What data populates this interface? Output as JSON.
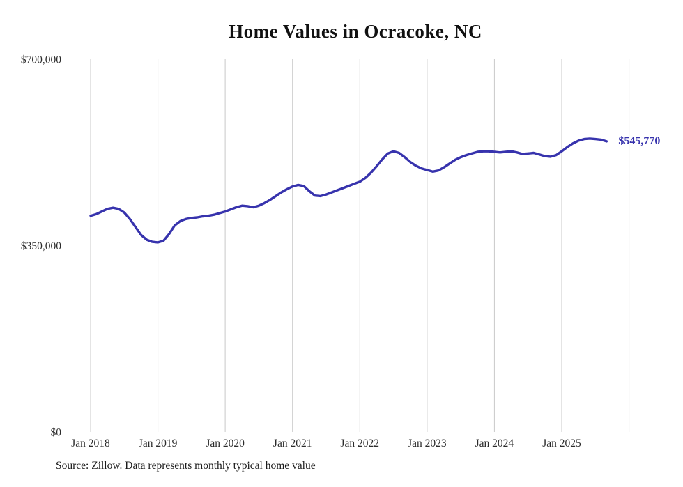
{
  "chart": {
    "title": "Home Values in Ocracoke, NC",
    "end_label": "$545,770",
    "source_note": "Source: Zillow. Data represents monthly typical home value",
    "line_color": "#3733ad",
    "grid_color": "#c9c9c9",
    "tick_text_color": "#2b2b2b",
    "title_color": "#111111"
  },
  "chart_data": {
    "type": "line",
    "title": "Home Values in Ocracoke, NC",
    "series_name": "Typical home value (monthly)",
    "x": [
      "2018-01",
      "2018-02",
      "2018-03",
      "2018-04",
      "2018-05",
      "2018-06",
      "2018-07",
      "2018-08",
      "2018-09",
      "2018-10",
      "2018-11",
      "2018-12",
      "2019-01",
      "2019-02",
      "2019-03",
      "2019-04",
      "2019-05",
      "2019-06",
      "2019-07",
      "2019-08",
      "2019-09",
      "2019-10",
      "2019-11",
      "2019-12",
      "2020-01",
      "2020-02",
      "2020-03",
      "2020-04",
      "2020-05",
      "2020-06",
      "2020-07",
      "2020-08",
      "2020-09",
      "2020-10",
      "2020-11",
      "2020-12",
      "2021-01",
      "2021-02",
      "2021-03",
      "2021-04",
      "2021-05",
      "2021-06",
      "2021-07",
      "2021-08",
      "2021-09",
      "2021-10",
      "2021-11",
      "2021-12",
      "2022-01",
      "2022-02",
      "2022-03",
      "2022-04",
      "2022-05",
      "2022-06",
      "2022-07",
      "2022-08",
      "2022-09",
      "2022-10",
      "2022-11",
      "2022-12",
      "2023-01",
      "2023-02",
      "2023-03",
      "2023-04",
      "2023-05",
      "2023-06",
      "2023-07",
      "2023-08",
      "2023-09",
      "2023-10",
      "2023-11",
      "2023-12",
      "2024-01",
      "2024-02",
      "2024-03",
      "2024-04",
      "2024-05",
      "2024-06",
      "2024-07",
      "2024-08",
      "2024-09",
      "2024-10",
      "2024-11",
      "2024-12",
      "2025-01",
      "2025-02",
      "2025-03",
      "2025-04",
      "2025-05",
      "2025-06",
      "2025-07",
      "2025-08",
      "2025-09"
    ],
    "values": [
      406000,
      409000,
      414000,
      419000,
      421000,
      419000,
      412000,
      400000,
      385000,
      370000,
      361000,
      357000,
      356000,
      359000,
      372000,
      388000,
      396000,
      400000,
      402000,
      403000,
      405000,
      406000,
      408000,
      411000,
      414000,
      418000,
      422000,
      425000,
      424000,
      422000,
      425000,
      430000,
      436000,
      443000,
      450000,
      456000,
      461000,
      464000,
      462000,
      452000,
      444000,
      443000,
      446000,
      450000,
      454000,
      458000,
      462000,
      466000,
      470000,
      477000,
      487000,
      499000,
      512000,
      523000,
      527000,
      524000,
      516000,
      507000,
      500000,
      495000,
      492000,
      489000,
      491000,
      497000,
      504000,
      511000,
      516000,
      520000,
      523000,
      526000,
      527000,
      527000,
      526000,
      525000,
      526000,
      527000,
      525000,
      522000,
      523000,
      524000,
      521000,
      518000,
      517000,
      520000,
      527000,
      535000,
      542000,
      547000,
      550000,
      551000,
      550000,
      549000,
      545770
    ],
    "last_value": 545770,
    "end_label": "$545,770",
    "ylim": [
      0,
      700000
    ],
    "yticks": [
      {
        "value": 0,
        "label": "$0"
      },
      {
        "value": 350000,
        "label": "$350,000"
      },
      {
        "value": 700000,
        "label": "$700,000"
      }
    ],
    "xticks": [
      {
        "month_index": 0,
        "label": "Jan 2018"
      },
      {
        "month_index": 12,
        "label": "Jan 2019"
      },
      {
        "month_index": 24,
        "label": "Jan 2020"
      },
      {
        "month_index": 36,
        "label": "Jan 2021"
      },
      {
        "month_index": 48,
        "label": "Jan 2022"
      },
      {
        "month_index": 60,
        "label": "Jan 2023"
      },
      {
        "month_index": 72,
        "label": "Jan 2024"
      },
      {
        "month_index": 84,
        "label": "Jan 2025"
      }
    ],
    "gridline_month_indices": [
      0,
      12,
      24,
      36,
      48,
      60,
      72,
      84,
      96
    ],
    "grid": "vertical-only",
    "legend": "none",
    "source": "Source: Zillow. Data represents monthly typical home value"
  }
}
